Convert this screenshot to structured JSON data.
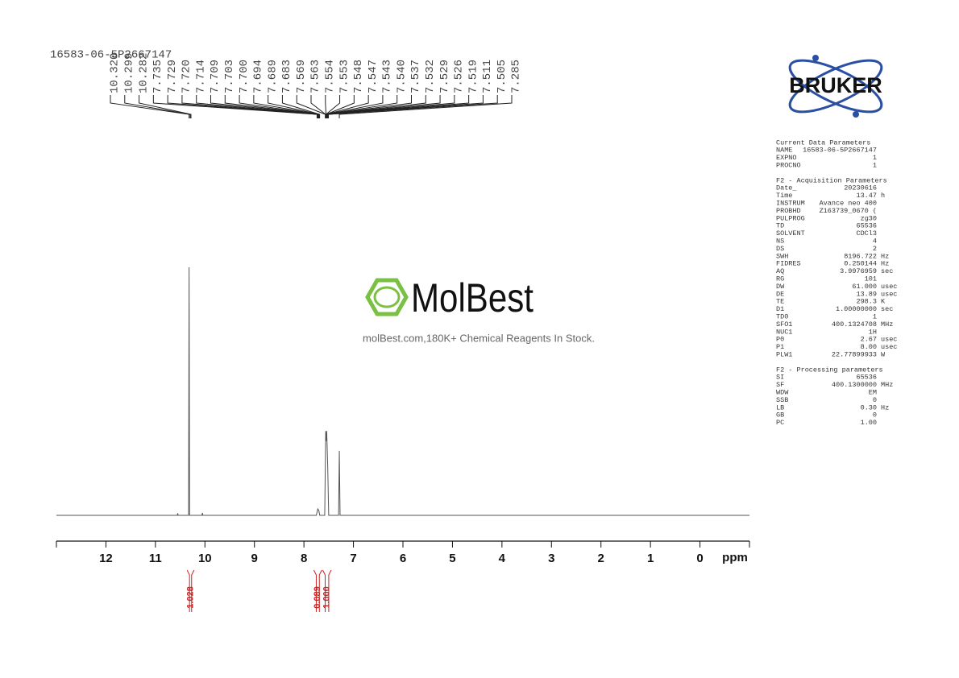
{
  "chart_data": {
    "type": "line",
    "title": "16583-06-5P2667147",
    "x": [
      13,
      10.56,
      10.55,
      10.54,
      10.33,
      10.32,
      10.31,
      10.06,
      10.05,
      10.04,
      7.75,
      7.72,
      7.7,
      7.68,
      7.58,
      7.56,
      7.55,
      7.54,
      7.52,
      7.5,
      7.3,
      7.285,
      7.27,
      -1
    ],
    "values": [
      0,
      0,
      0.8,
      0,
      0,
      100,
      0,
      0,
      1,
      0,
      0,
      2.6,
      2.0,
      0,
      0,
      34,
      30,
      34,
      20,
      0,
      0,
      26,
      0,
      0
    ],
    "color": "#555555",
    "xlim": [
      13,
      -1
    ],
    "xticks": [
      12,
      11,
      10,
      9,
      8,
      7,
      6,
      5,
      4,
      3,
      2,
      1,
      0
    ],
    "ylim": [
      0,
      100
    ],
    "x_label": "ppm",
    "peak_labels": [
      {
        "value": 10.32,
        "label": "10.320"
      },
      {
        "value": 10.299,
        "label": "10.299"
      },
      {
        "value": 10.282,
        "label": "10.282"
      },
      {
        "value": 7.735,
        "label": "7.735"
      },
      {
        "value": 7.729,
        "label": "7.729"
      },
      {
        "value": 7.72,
        "label": "7.720"
      },
      {
        "value": 7.714,
        "label": "7.714"
      },
      {
        "value": 7.709,
        "label": "7.709"
      },
      {
        "value": 7.703,
        "label": "7.703"
      },
      {
        "value": 7.7,
        "label": "7.700"
      },
      {
        "value": 7.694,
        "label": "7.694"
      },
      {
        "value": 7.689,
        "label": "7.689"
      },
      {
        "value": 7.683,
        "label": "7.683"
      },
      {
        "value": 7.569,
        "label": "7.569"
      },
      {
        "value": 7.563,
        "label": "7.563"
      },
      {
        "value": 7.554,
        "label": "7.554"
      },
      {
        "value": 7.553,
        "label": "7.553"
      },
      {
        "value": 7.548,
        "label": "7.548"
      },
      {
        "value": 7.547,
        "label": "7.547"
      },
      {
        "value": 7.543,
        "label": "7.543"
      },
      {
        "value": 7.54,
        "label": "7.540"
      },
      {
        "value": 7.537,
        "label": "7.537"
      },
      {
        "value": 7.532,
        "label": "7.532"
      },
      {
        "value": 7.529,
        "label": "7.529"
      },
      {
        "value": 7.526,
        "label": "7.526"
      },
      {
        "value": 7.519,
        "label": "7.519"
      },
      {
        "value": 7.511,
        "label": "7.511"
      },
      {
        "value": 7.505,
        "label": "7.505"
      },
      {
        "value": 7.285,
        "label": "7.285"
      }
    ],
    "integrals": [
      {
        "value": 1.028,
        "label": "1.028",
        "range": [
          10.36,
          10.22
        ]
      },
      {
        "value": 0.089,
        "label": "0.089",
        "range": [
          7.8,
          7.64
        ]
      },
      {
        "value": 1.0,
        "label": "1.000",
        "range": [
          7.62,
          7.45
        ]
      }
    ],
    "integral_color": "#cc2222"
  },
  "logos": {
    "bruker": "BRUKER",
    "molbest": "MolBest",
    "molbest_tagline": "molBest.com,180K+ Chemical Reagents In Stock."
  },
  "parameters": [
    {
      "header": "Current Data Parameters",
      "rows": [
        [
          "NAME",
          "16583-06-5P2667147"
        ],
        [
          "EXPNO",
          "1"
        ],
        [
          "PROCNO",
          "1"
        ]
      ]
    },
    {
      "header": "F2 - Acquisition Parameters",
      "rows": [
        [
          "Date_",
          "20230616"
        ],
        [
          "Time",
          "13.47",
          "h"
        ],
        [
          "INSTRUM",
          "Avance neo 400"
        ],
        [
          "PROBHD",
          "Z163739_0670 ("
        ],
        [
          "PULPROG",
          "zg30"
        ],
        [
          "TD",
          "65536"
        ],
        [
          "SOLVENT",
          "CDCl3"
        ],
        [
          "NS",
          "4"
        ],
        [
          "DS",
          "2"
        ],
        [
          "SWH",
          "8196.722",
          "Hz"
        ],
        [
          "FIDRES",
          "0.250144",
          "Hz"
        ],
        [
          "AQ",
          "3.9976959",
          "sec"
        ],
        [
          "RG",
          "101"
        ],
        [
          "DW",
          "61.000",
          "usec"
        ],
        [
          "DE",
          "13.89",
          "usec"
        ],
        [
          "TE",
          "298.3",
          "K"
        ],
        [
          "D1",
          "1.00000000",
          "sec"
        ],
        [
          "TD0",
          "1"
        ],
        [
          "SFO1",
          "400.1324708",
          "MHz"
        ],
        [
          "NUC1",
          "1H"
        ],
        [
          "P0",
          "2.67",
          "usec"
        ],
        [
          "P1",
          "8.00",
          "usec"
        ],
        [
          "PLW1",
          "22.77899933",
          "W"
        ]
      ]
    },
    {
      "header": "F2 - Processing parameters",
      "rows": [
        [
          "SI",
          "65536"
        ],
        [
          "SF",
          "400.1300000",
          "MHz"
        ],
        [
          "WDW",
          "EM"
        ],
        [
          "SSB",
          "0"
        ],
        [
          "LB",
          "0.30",
          "Hz"
        ],
        [
          "GB",
          "0"
        ],
        [
          "PC",
          "1.00"
        ]
      ]
    }
  ]
}
